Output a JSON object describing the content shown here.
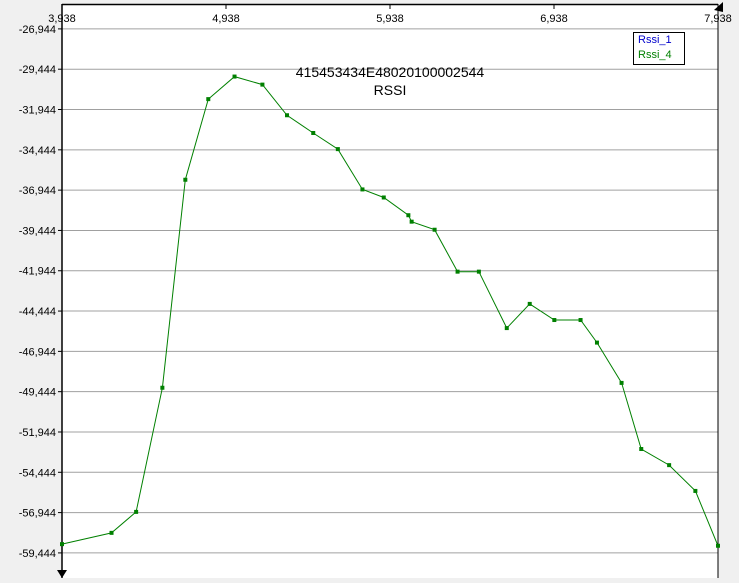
{
  "chart_data": {
    "type": "line",
    "title": "415453434E48020100002544",
    "subtitle": "RSSI",
    "xlabel": "",
    "ylabel": "",
    "xlim": [
      3.938,
      7.938
    ],
    "ylim": [
      -61.0,
      -25.4
    ],
    "x_ticks": [
      "3,938",
      "4,938",
      "5,938",
      "6,938",
      "7,938"
    ],
    "x_tick_values": [
      3.938,
      4.938,
      5.938,
      6.938,
      7.938
    ],
    "y_ticks": [
      "-26,944",
      "-29,444",
      "-31,944",
      "-34,444",
      "-36,944",
      "-39,444",
      "-41,944",
      "-44,444",
      "-46,944",
      "-49,444",
      "-51,944",
      "-54,444",
      "-56,944",
      "-59,444"
    ],
    "y_tick_values": [
      -26.944,
      -29.444,
      -31.944,
      -34.444,
      -36.944,
      -39.444,
      -41.944,
      -44.444,
      -46.944,
      -49.444,
      -51.944,
      -54.444,
      -56.944,
      -59.444
    ],
    "grid": true,
    "legend_position": "top-right",
    "series": [
      {
        "name": "Rssi_1",
        "color": "#0000cc",
        "x": [],
        "y": []
      },
      {
        "name": "Rssi_4",
        "color": "#008000",
        "x": [
          3.938,
          4.24,
          4.39,
          4.55,
          4.69,
          4.83,
          4.99,
          5.16,
          5.31,
          5.47,
          5.62,
          5.77,
          5.9,
          6.05,
          6.07,
          6.21,
          6.35,
          6.48,
          6.65,
          6.79,
          6.94,
          7.1,
          7.2,
          7.35,
          7.47,
          7.64,
          7.8,
          7.938
        ],
        "y": [
          -58.9,
          -58.2,
          -56.9,
          -49.2,
          -36.3,
          -31.3,
          -29.9,
          -30.4,
          -32.3,
          -33.4,
          -34.4,
          -36.9,
          -37.4,
          -38.5,
          -38.9,
          -39.4,
          -42.0,
          -42.0,
          -45.5,
          -44.0,
          -45.0,
          -45.0,
          -46.4,
          -48.9,
          -53.0,
          -54.0,
          -55.6,
          -59.0
        ]
      }
    ]
  }
}
